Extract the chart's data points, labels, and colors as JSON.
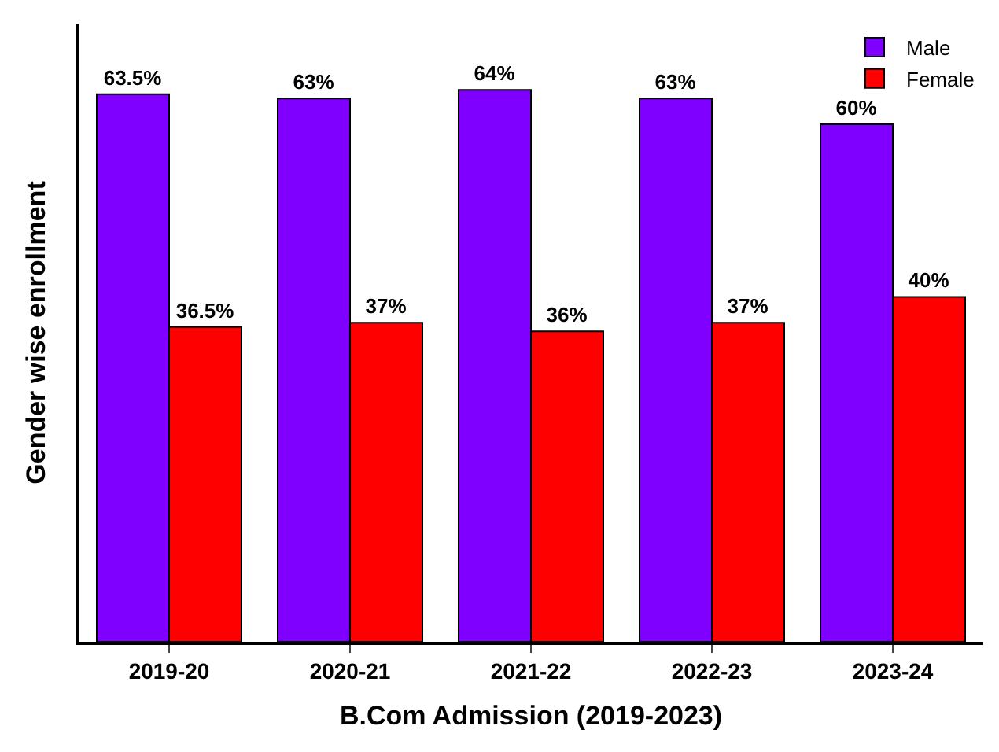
{
  "chart_data": {
    "type": "bar",
    "xlabel": "B.Com Admission (2019-2023)",
    "ylabel": "Gender wise enrollment",
    "categories": [
      "2019-20",
      "2020-21",
      "2021-22",
      "2022-23",
      "2023-24"
    ],
    "series": [
      {
        "name": "Male",
        "color": "#8000ff",
        "values": [
          63.5,
          63,
          64,
          63,
          60
        ],
        "value_labels": [
          "63.5%",
          "63%",
          "64%",
          "63%",
          "60%"
        ]
      },
      {
        "name": "Female",
        "color": "#ff0000",
        "values": [
          36.5,
          37,
          36,
          37,
          40
        ],
        "value_labels": [
          "36.5%",
          "37%",
          "36%",
          "37%",
          "40%"
        ]
      }
    ],
    "legend": "top right"
  }
}
